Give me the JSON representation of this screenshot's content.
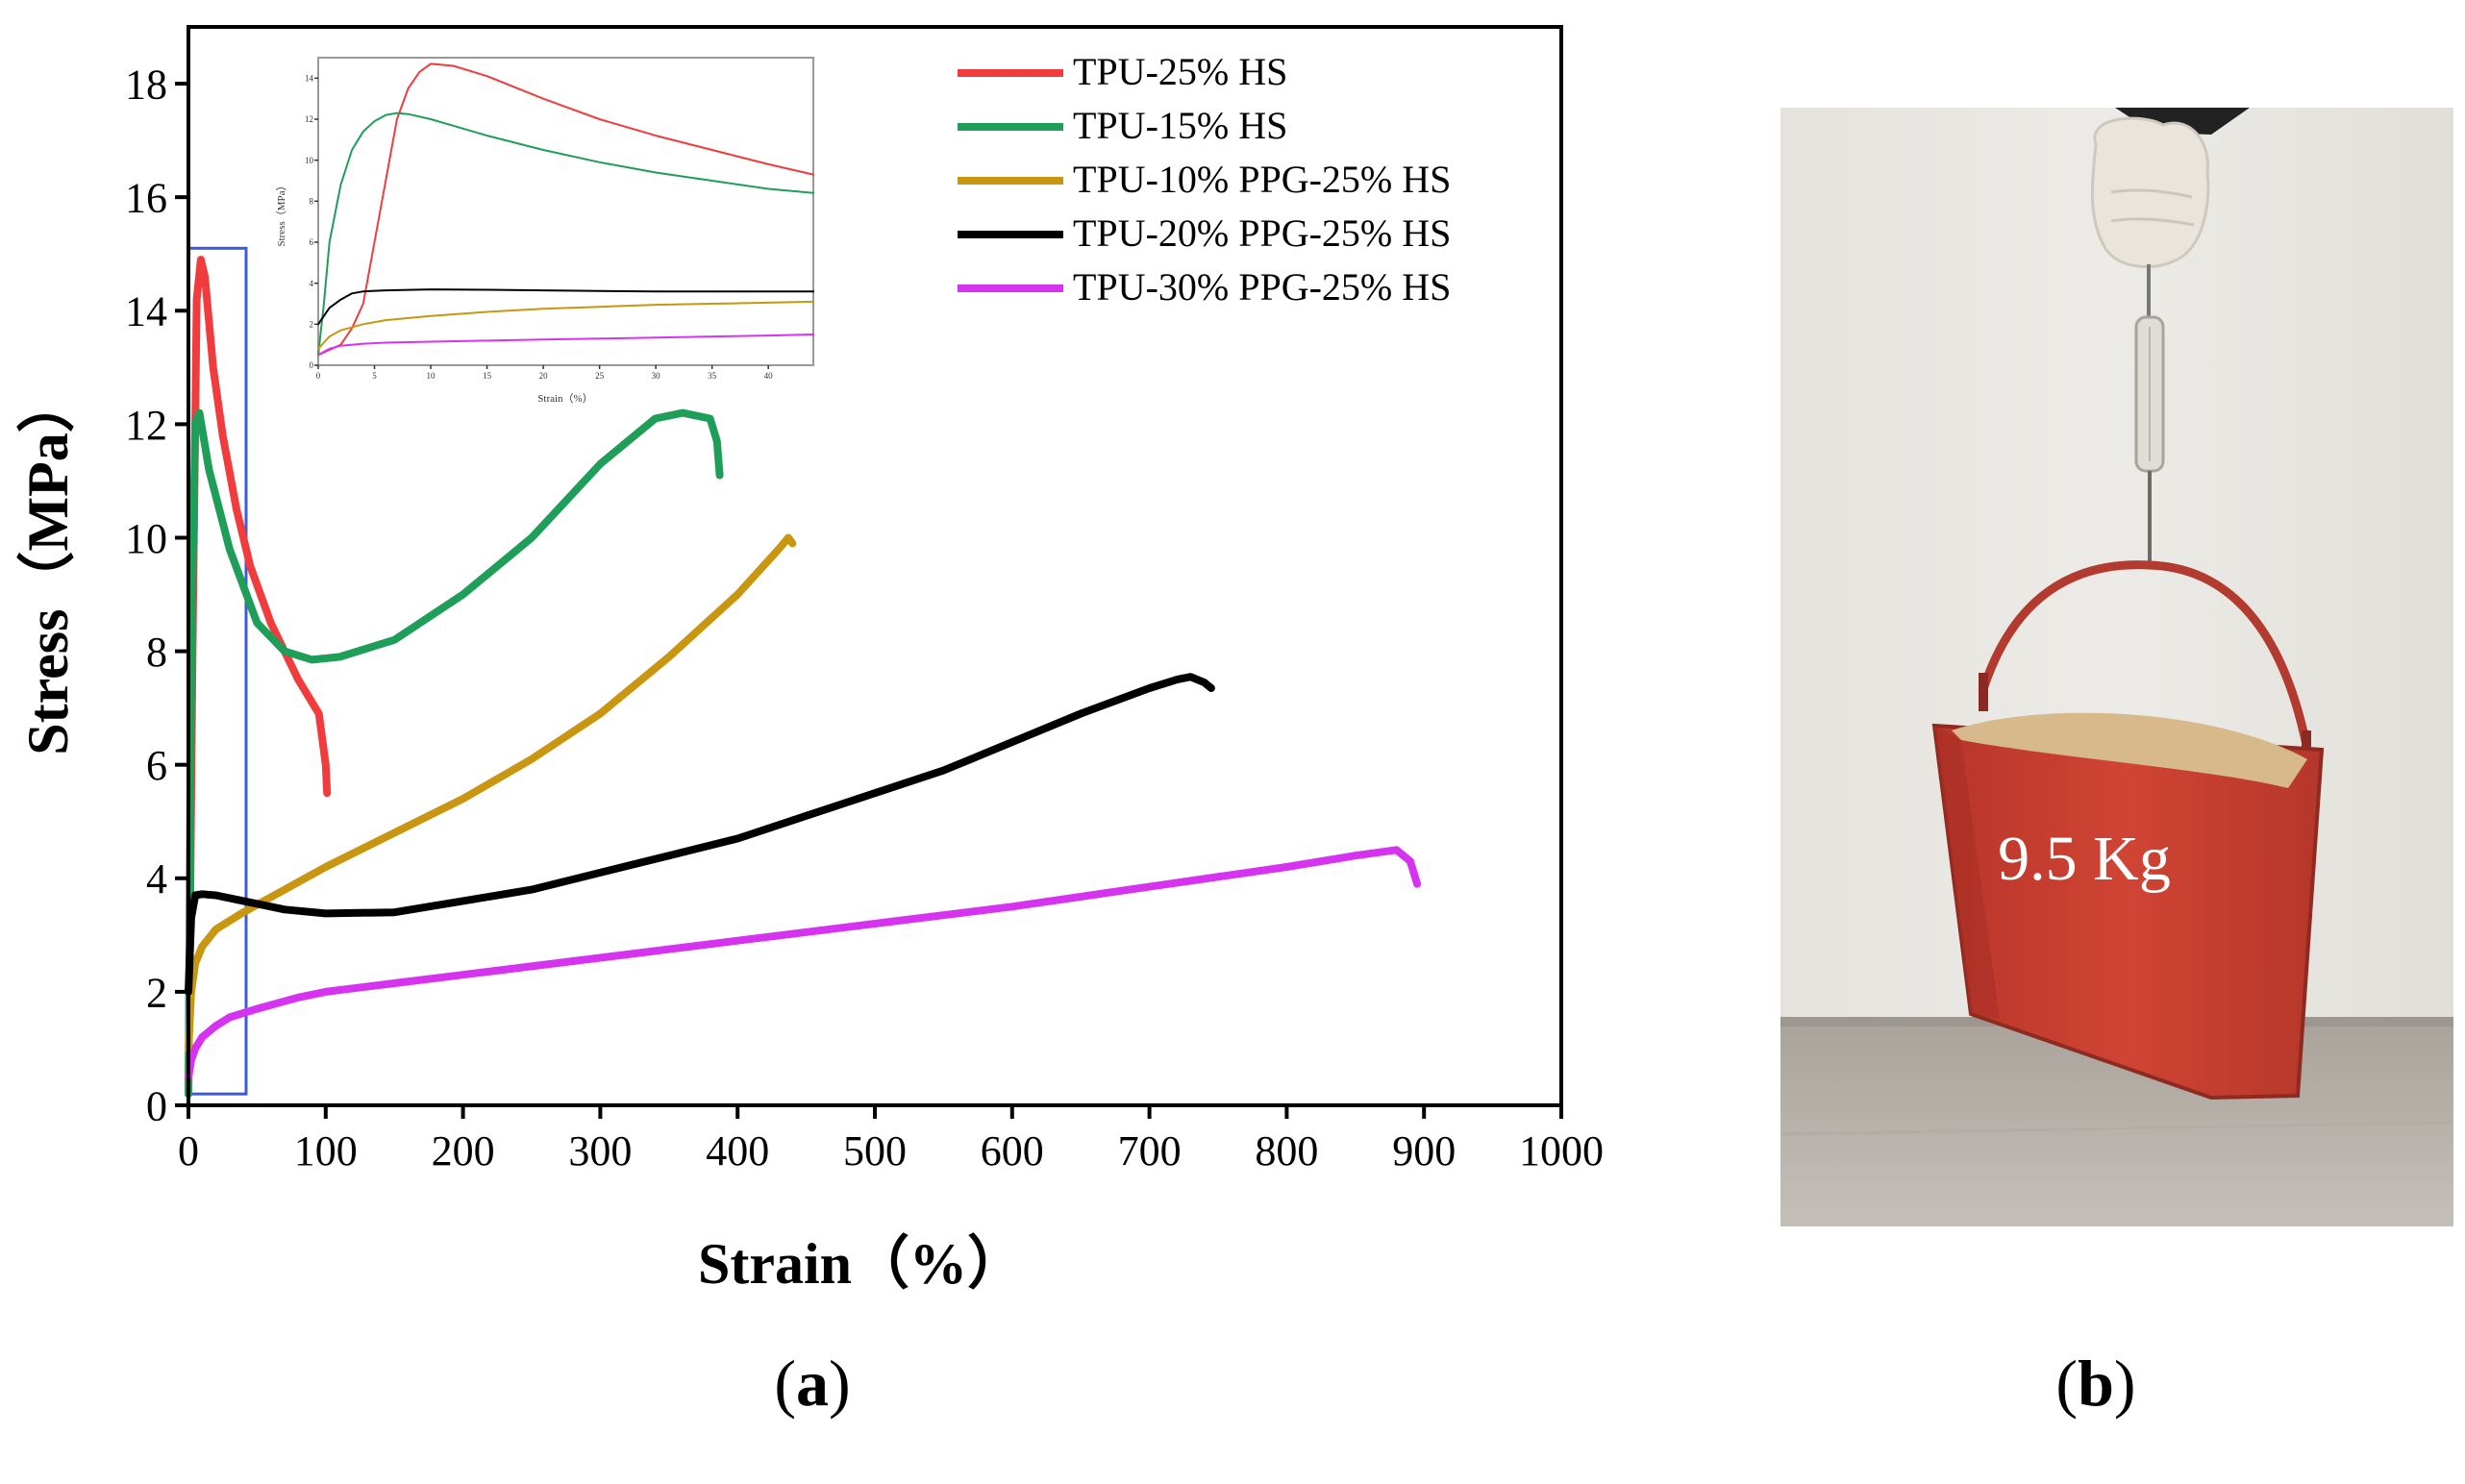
{
  "panel_labels": {
    "a": "a",
    "b": "b"
  },
  "chart_data": [
    {
      "type": "line",
      "panel": "a",
      "xlabel": "Strain（%）",
      "ylabel": "Stress（MPa）",
      "xlim": [
        0,
        1000
      ],
      "ylim": [
        0,
        19
      ],
      "xticks": [
        0,
        100,
        200,
        300,
        400,
        500,
        600,
        700,
        800,
        900,
        1000
      ],
      "yticks": [
        0,
        2,
        4,
        6,
        8,
        10,
        12,
        14,
        16,
        18
      ],
      "grid": false,
      "legend_position": "top-right",
      "highlight_box": {
        "x": [
          0,
          42
        ],
        "y": [
          0.2,
          15.1
        ],
        "color": "#3b5bdb"
      },
      "series": [
        {
          "name": "TPU-25% HS",
          "color": "#f03c3c",
          "x": [
            0,
            3,
            6,
            9,
            12,
            18,
            25,
            35,
            45,
            60,
            80,
            95,
            100,
            101
          ],
          "y": [
            0.2,
            8,
            14.2,
            14.9,
            14.6,
            13,
            11.8,
            10.5,
            9.5,
            8.5,
            7.5,
            6.9,
            6.0,
            5.5
          ]
        },
        {
          "name": "TPU-15% HS",
          "color": "#1f9e5a",
          "x": [
            0,
            2,
            5,
            8,
            15,
            30,
            50,
            70,
            90,
            110,
            150,
            200,
            250,
            300,
            340,
            360,
            380,
            385,
            387
          ],
          "y": [
            0.2,
            8,
            12,
            12.2,
            11.2,
            9.8,
            8.5,
            8.0,
            7.85,
            7.9,
            8.2,
            9.0,
            10.0,
            11.3,
            12.1,
            12.2,
            12.1,
            11.7,
            11.1
          ]
        },
        {
          "name": "TPU-10% PPG-25% HS",
          "color": "#c99612",
          "x": [
            0,
            2,
            5,
            10,
            20,
            40,
            70,
            100,
            150,
            200,
            250,
            300,
            350,
            400,
            430,
            437,
            440
          ],
          "y": [
            1.0,
            2.0,
            2.5,
            2.8,
            3.1,
            3.4,
            3.8,
            4.2,
            4.8,
            5.4,
            6.1,
            6.9,
            7.9,
            9.0,
            9.8,
            10.0,
            9.9
          ]
        },
        {
          "name": "TPU-20% PPG-25% HS",
          "color": "#000000",
          "x": [
            0,
            2,
            5,
            10,
            20,
            40,
            70,
            100,
            150,
            200,
            250,
            300,
            350,
            400,
            450,
            500,
            550,
            600,
            650,
            700,
            720,
            730,
            740,
            745
          ],
          "y": [
            2.0,
            3.3,
            3.7,
            3.72,
            3.7,
            3.6,
            3.45,
            3.38,
            3.4,
            3.6,
            3.8,
            4.1,
            4.4,
            4.7,
            5.1,
            5.5,
            5.9,
            6.4,
            6.9,
            7.35,
            7.5,
            7.55,
            7.45,
            7.35
          ]
        },
        {
          "name": "TPU-30% PPG-25% HS",
          "color": "#d633f0",
          "x": [
            0,
            2,
            5,
            10,
            20,
            30,
            50,
            80,
            100,
            150,
            200,
            300,
            400,
            500,
            600,
            700,
            800,
            850,
            880,
            890,
            895
          ],
          "y": [
            0.5,
            0.8,
            1.0,
            1.2,
            1.4,
            1.55,
            1.7,
            1.9,
            2.0,
            2.15,
            2.3,
            2.6,
            2.9,
            3.2,
            3.5,
            3.85,
            4.2,
            4.4,
            4.5,
            4.3,
            3.9
          ]
        }
      ]
    },
    {
      "type": "line",
      "panel": "a-inset",
      "xlabel": "Strain（%）",
      "ylabel": "Stress（MPa）",
      "xlim": [
        0,
        44
      ],
      "ylim": [
        0,
        15
      ],
      "xticks": [
        0,
        5,
        10,
        15,
        20,
        25,
        30,
        35,
        40
      ],
      "yticks": [
        0,
        2,
        4,
        6,
        8,
        10,
        12,
        14
      ],
      "series": [
        {
          "name": "TPU-25% HS",
          "color": "#f03c3c",
          "x": [
            0,
            2,
            3,
            4,
            5,
            6,
            7,
            8,
            9,
            10,
            12,
            15,
            20,
            25,
            30,
            35,
            40,
            44
          ],
          "y": [
            0.5,
            1.0,
            1.8,
            3.0,
            6.0,
            9.0,
            12.0,
            13.5,
            14.3,
            14.7,
            14.6,
            14.1,
            13.0,
            12.0,
            11.2,
            10.5,
            9.8,
            9.3
          ]
        },
        {
          "name": "TPU-15% HS",
          "color": "#1f9e5a",
          "x": [
            0,
            0.5,
            1,
            2,
            3,
            4,
            5,
            6,
            7,
            8,
            10,
            15,
            20,
            25,
            30,
            35,
            40,
            44
          ],
          "y": [
            0.5,
            3.0,
            6.0,
            8.8,
            10.5,
            11.4,
            11.9,
            12.2,
            12.3,
            12.25,
            12.0,
            11.2,
            10.5,
            9.9,
            9.4,
            9.0,
            8.6,
            8.4
          ]
        },
        {
          "name": "TPU-10% PPG-25% HS",
          "color": "#c99612",
          "x": [
            0,
            1,
            2,
            4,
            6,
            10,
            15,
            20,
            25,
            30,
            35,
            40,
            44
          ],
          "y": [
            0.8,
            1.4,
            1.7,
            2.0,
            2.2,
            2.4,
            2.6,
            2.75,
            2.85,
            2.95,
            3.0,
            3.05,
            3.1
          ]
        },
        {
          "name": "TPU-20% PPG-25% HS",
          "color": "#000000",
          "x": [
            0,
            1,
            2,
            3,
            4,
            6,
            10,
            15,
            20,
            25,
            30,
            35,
            40,
            44
          ],
          "y": [
            2.0,
            2.8,
            3.2,
            3.5,
            3.6,
            3.65,
            3.7,
            3.68,
            3.65,
            3.62,
            3.6,
            3.6,
            3.6,
            3.6
          ]
        },
        {
          "name": "TPU-30% PPG-25% HS",
          "color": "#d633f0",
          "x": [
            0,
            1,
            2,
            4,
            6,
            10,
            15,
            20,
            25,
            30,
            35,
            40,
            44
          ],
          "y": [
            0.5,
            0.8,
            0.95,
            1.05,
            1.1,
            1.15,
            1.2,
            1.25,
            1.3,
            1.35,
            1.4,
            1.45,
            1.5
          ]
        }
      ]
    }
  ],
  "photo": {
    "annotation": "9.5 Kg"
  }
}
